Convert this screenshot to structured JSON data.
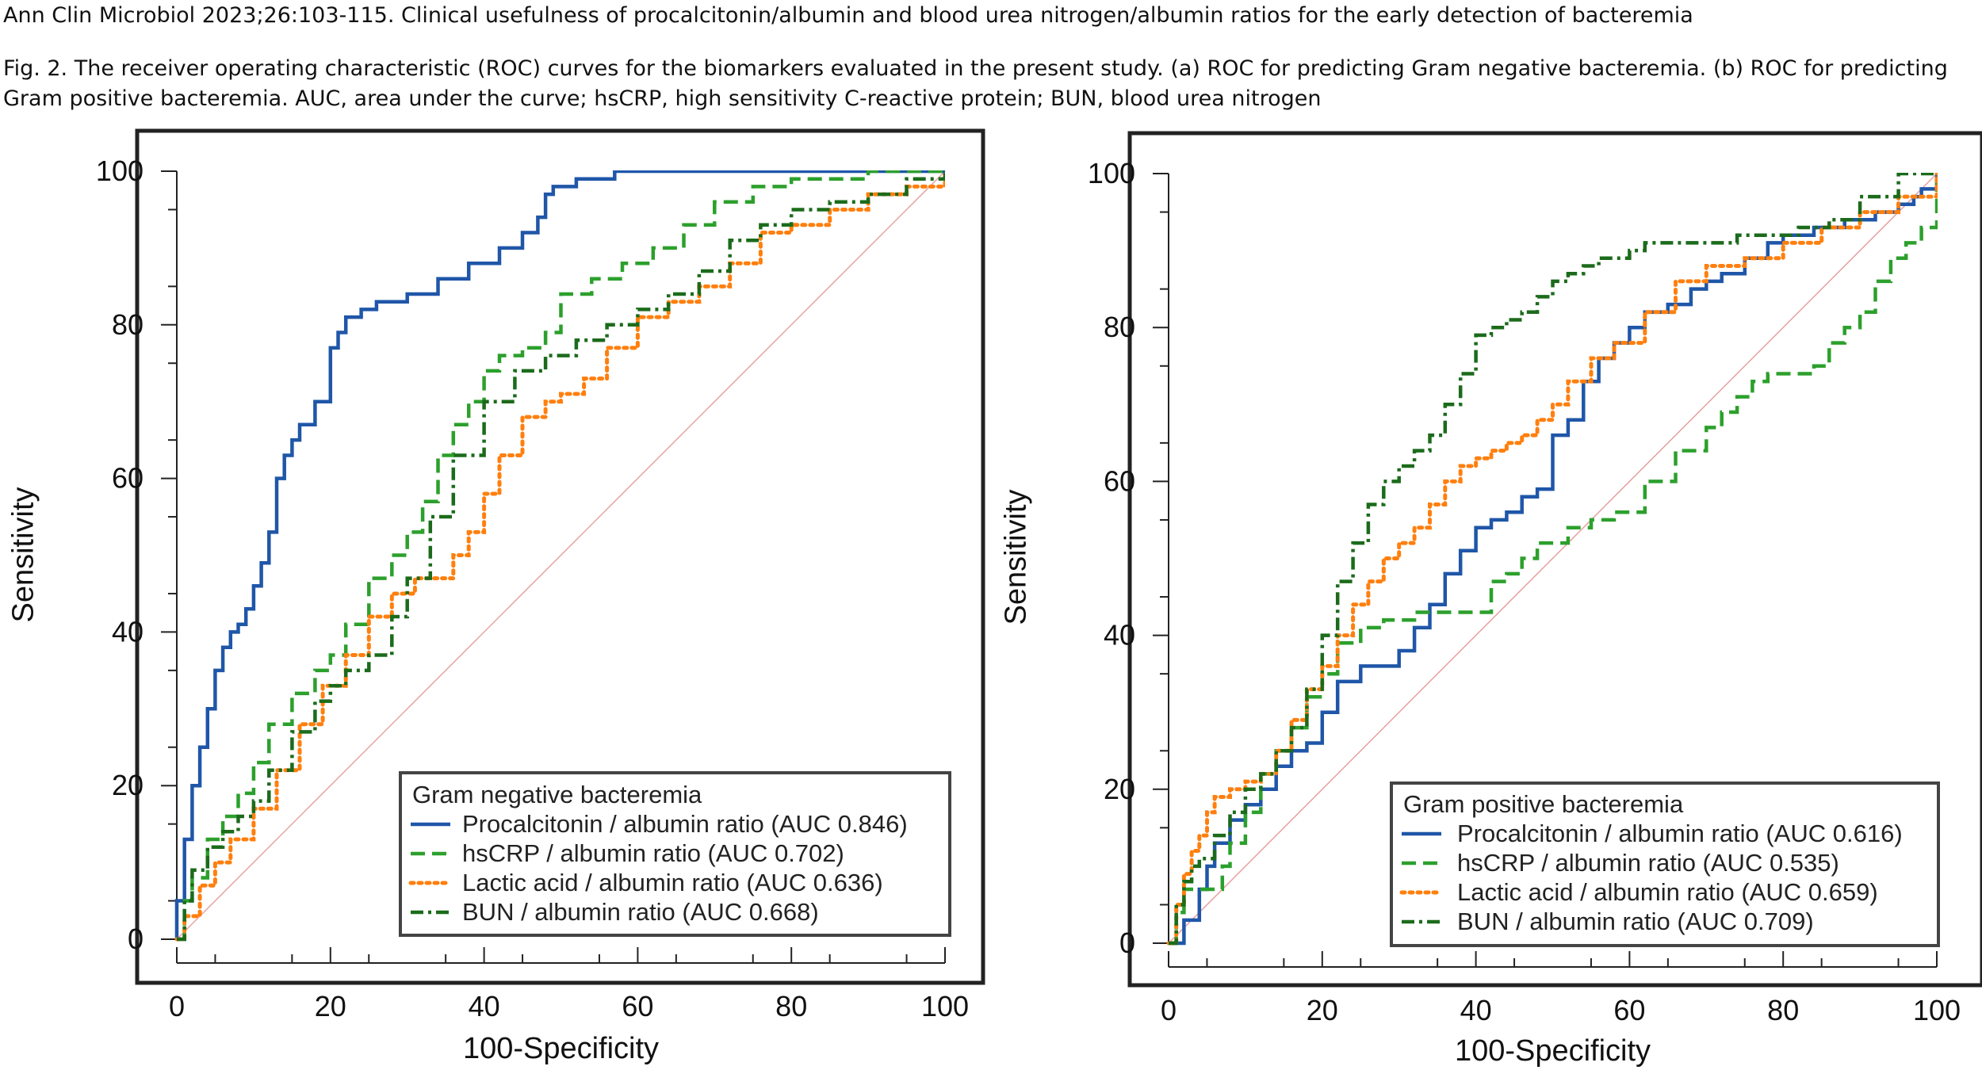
{
  "caption": {
    "citation": "Ann Clin Microbiol 2023;26:103-115. Clinical usefulness of procalcitonin/albumin and blood urea nitrogen/albumin ratios for the early detection of bacteremia",
    "figure": "Fig. 2. The receiver operating characteristic (ROC) curves for the biomarkers evaluated in the present study. (a) ROC for predicting Gram negative bacteremia. (b) ROC for predicting Gram positive bacteremia. AUC, area under the curve; hsCRP, high sensitivity C-reactive protein; BUN, blood urea nitrogen"
  },
  "colors": {
    "procalcitonin": "#1f56a8",
    "hscrp": "#2ca02c",
    "lactic": "#ff7f0e",
    "bun": "#1b6b1b",
    "diagonal": "#e8a0a0"
  },
  "chart_data": [
    {
      "type": "line",
      "title": "",
      "xlabel": "100-Specificity",
      "ylabel": "Sensitivity",
      "xlim": [
        0,
        100
      ],
      "ylim": [
        0,
        100
      ],
      "xticks": [
        0,
        20,
        40,
        60,
        80,
        100
      ],
      "yticks": [
        0,
        20,
        40,
        60,
        80,
        100
      ],
      "legend_title": "Gram negative bacteremia",
      "legend_position": "bottom-right",
      "series": [
        {
          "name": "Procalcitonin / albumin ratio (AUC 0.846)",
          "style": "solid",
          "color": "#1f56a8",
          "x": [
            0,
            0,
            1,
            1,
            2,
            2,
            3,
            4,
            5,
            6,
            7,
            8,
            9,
            10,
            11,
            12,
            13,
            14,
            15,
            16,
            18,
            20,
            21,
            22,
            24,
            26,
            30,
            34,
            38,
            42,
            45,
            47,
            48,
            49,
            52,
            57,
            60,
            70,
            80,
            90,
            100
          ],
          "y": [
            0,
            5,
            10,
            13,
            16,
            20,
            25,
            30,
            35,
            38,
            40,
            41,
            43,
            46,
            49,
            53,
            60,
            63,
            65,
            67,
            70,
            77,
            79,
            81,
            82,
            83,
            84,
            86,
            88,
            90,
            92,
            94,
            97,
            98,
            99,
            100,
            100,
            100,
            100,
            100,
            100
          ]
        },
        {
          "name": "hsCRP / albumin ratio (AUC 0.702)",
          "style": "dashed",
          "color": "#2ca02c",
          "x": [
            0,
            1,
            2,
            4,
            6,
            8,
            10,
            12,
            15,
            18,
            20,
            22,
            25,
            28,
            30,
            32,
            34,
            36,
            38,
            40,
            42,
            45,
            48,
            50,
            54,
            58,
            62,
            66,
            70,
            75,
            80,
            85,
            90,
            95,
            100
          ],
          "y": [
            0,
            5,
            8,
            13,
            16,
            19,
            23,
            28,
            32,
            35,
            37,
            41,
            47,
            50,
            53,
            57,
            63,
            67,
            70,
            74,
            76,
            77,
            79,
            84,
            86,
            88,
            90,
            93,
            96,
            98,
            99,
            99,
            100,
            100,
            100
          ]
        },
        {
          "name": "Lactic acid / albumin ratio (AUC 0.636)",
          "style": "dotted",
          "color": "#ff7f0e",
          "x": [
            0,
            1,
            3,
            5,
            7,
            10,
            13,
            16,
            19,
            22,
            25,
            28,
            31,
            34,
            36,
            38,
            40,
            42,
            45,
            48,
            50,
            53,
            56,
            60,
            64,
            68,
            72,
            76,
            80,
            85,
            90,
            95,
            100
          ],
          "y": [
            0,
            3,
            7,
            10,
            13,
            17,
            22,
            28,
            33,
            37,
            42,
            45,
            47,
            47,
            50,
            53,
            58,
            63,
            68,
            70,
            71,
            73,
            77,
            81,
            83,
            85,
            88,
            92,
            93,
            95,
            97,
            98,
            100
          ]
        },
        {
          "name": "BUN / albumin ratio (AUC 0.668)",
          "style": "dashdot",
          "color": "#1b6b1b",
          "x": [
            0,
            1,
            2,
            4,
            6,
            8,
            10,
            12,
            15,
            18,
            20,
            22,
            25,
            28,
            30,
            33,
            36,
            40,
            44,
            48,
            52,
            56,
            60,
            64,
            68,
            72,
            76,
            80,
            85,
            90,
            95,
            100
          ],
          "y": [
            0,
            5,
            9,
            12,
            14,
            16,
            18,
            22,
            27,
            31,
            33,
            35,
            37,
            42,
            47,
            55,
            63,
            70,
            74,
            76,
            78,
            80,
            82,
            84,
            87,
            91,
            93,
            95,
            96,
            97,
            99,
            100
          ]
        }
      ]
    },
    {
      "type": "line",
      "title": "",
      "xlabel": "100-Specificity",
      "ylabel": "Sensitivity",
      "xlim": [
        0,
        100
      ],
      "ylim": [
        0,
        100
      ],
      "xticks": [
        0,
        20,
        40,
        60,
        80,
        100
      ],
      "yticks": [
        0,
        20,
        40,
        60,
        80,
        100
      ],
      "legend_title": "Gram positive bacteremia",
      "legend_position": "bottom-right",
      "series": [
        {
          "name": "Procalcitonin / albumin ratio (AUC 0.616)",
          "style": "solid",
          "color": "#1f56a8",
          "x": [
            0,
            1,
            2,
            3,
            4,
            5,
            6,
            8,
            10,
            12,
            14,
            16,
            18,
            20,
            22,
            25,
            28,
            30,
            32,
            34,
            36,
            38,
            40,
            42,
            44,
            46,
            48,
            50,
            52,
            54,
            56,
            58,
            60,
            62,
            65,
            68,
            70,
            72,
            75,
            78,
            80,
            84,
            88,
            92,
            95,
            97,
            98,
            100
          ],
          "y": [
            0,
            0,
            3,
            3,
            7,
            10,
            13,
            16,
            18,
            20,
            23,
            25,
            26,
            30,
            34,
            36,
            36,
            38,
            41,
            44,
            48,
            51,
            54,
            55,
            56,
            58,
            59,
            66,
            68,
            73,
            76,
            78,
            80,
            82,
            83,
            85,
            86,
            87,
            89,
            91,
            92,
            93,
            94,
            95,
            96,
            97,
            98,
            100
          ]
        },
        {
          "name": "hsCRP / albumin ratio (AUC 0.535)",
          "style": "dashed",
          "color": "#2ca02c",
          "x": [
            0,
            1,
            2,
            3,
            5,
            7,
            8,
            10,
            12,
            14,
            16,
            18,
            20,
            22,
            25,
            28,
            32,
            36,
            40,
            42,
            44,
            46,
            48,
            52,
            55,
            58,
            62,
            66,
            70,
            72,
            74,
            76,
            78,
            82,
            84,
            86,
            88,
            90,
            92,
            94,
            96,
            98,
            100
          ],
          "y": [
            0,
            4,
            7,
            7,
            7,
            10,
            13,
            17,
            22,
            25,
            28,
            32,
            35,
            39,
            41,
            42,
            43,
            43,
            43,
            47,
            48,
            50,
            52,
            54,
            55,
            56,
            60,
            64,
            67,
            69,
            71,
            73,
            74,
            74,
            75,
            78,
            80,
            82,
            86,
            89,
            91,
            93,
            100
          ]
        },
        {
          "name": "Lactic acid / albumin ratio (AUC 0.659)",
          "style": "dotted",
          "color": "#ff7f0e",
          "x": [
            0,
            1,
            2,
            3,
            4,
            5,
            6,
            8,
            10,
            12,
            14,
            16,
            18,
            20,
            22,
            24,
            26,
            28,
            30,
            32,
            34,
            36,
            38,
            40,
            42,
            44,
            46,
            48,
            50,
            52,
            55,
            58,
            62,
            66,
            70,
            75,
            80,
            85,
            90,
            95,
            100
          ],
          "y": [
            0,
            5,
            9,
            12,
            14,
            17,
            19,
            20,
            21,
            22,
            25,
            29,
            33,
            36,
            40,
            44,
            47,
            50,
            52,
            54,
            57,
            60,
            62,
            63,
            64,
            65,
            66,
            68,
            70,
            73,
            76,
            78,
            82,
            86,
            88,
            89,
            91,
            93,
            95,
            97,
            100
          ]
        },
        {
          "name": "BUN / albumin ratio (AUC 0.709)",
          "style": "dashdot",
          "color": "#1b6b1b",
          "x": [
            0,
            1,
            2,
            3,
            4,
            5,
            6,
            8,
            10,
            12,
            14,
            16,
            18,
            20,
            22,
            24,
            26,
            28,
            30,
            32,
            34,
            36,
            38,
            40,
            42,
            44,
            46,
            48,
            50,
            52,
            54,
            56,
            58,
            60,
            62,
            66,
            70,
            74,
            78,
            82,
            86,
            90,
            95,
            100
          ],
          "y": [
            0,
            5,
            8,
            10,
            11,
            11,
            14,
            17,
            20,
            22,
            25,
            28,
            33,
            40,
            47,
            52,
            57,
            60,
            62,
            64,
            66,
            70,
            74,
            79,
            80,
            81,
            82,
            84,
            86,
            87,
            88,
            89,
            89,
            90,
            91,
            91,
            91,
            92,
            92,
            93,
            94,
            97,
            100,
            100
          ]
        }
      ]
    }
  ]
}
